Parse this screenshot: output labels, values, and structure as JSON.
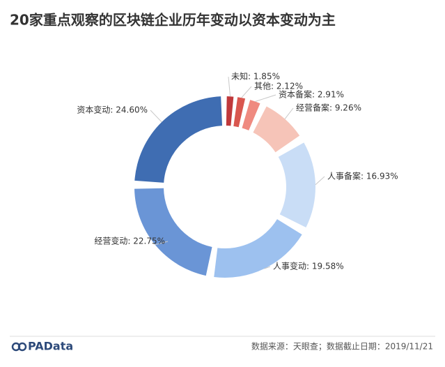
{
  "chart_data": {
    "type": "pie",
    "title": "20家重点观察的区块链企业历年变动以资本变动为主",
    "values": [
      1.85,
      2.12,
      2.91,
      9.26,
      16.93,
      19.58,
      22.75,
      24.6
    ],
    "value_labels": [
      "未知: 1.85%",
      "其他: 2.12%",
      "资本备案: 2.91%",
      "经营备案: 9.26%",
      "人事备案: 16.93%",
      "人事变动: 19.58%",
      "经营变动: 22.75%",
      "资本变动: 24.60%"
    ],
    "colors": [
      "#c0393b",
      "#d9574f",
      "#ef8a80",
      "#f6c4b8",
      "#c9ddf6",
      "#9dc1ef",
      "#6a95d6",
      "#3f6db2"
    ],
    "source": "数据来源：天眼查；数据截止日期：2019/11/21",
    "logo": "PAData"
  }
}
